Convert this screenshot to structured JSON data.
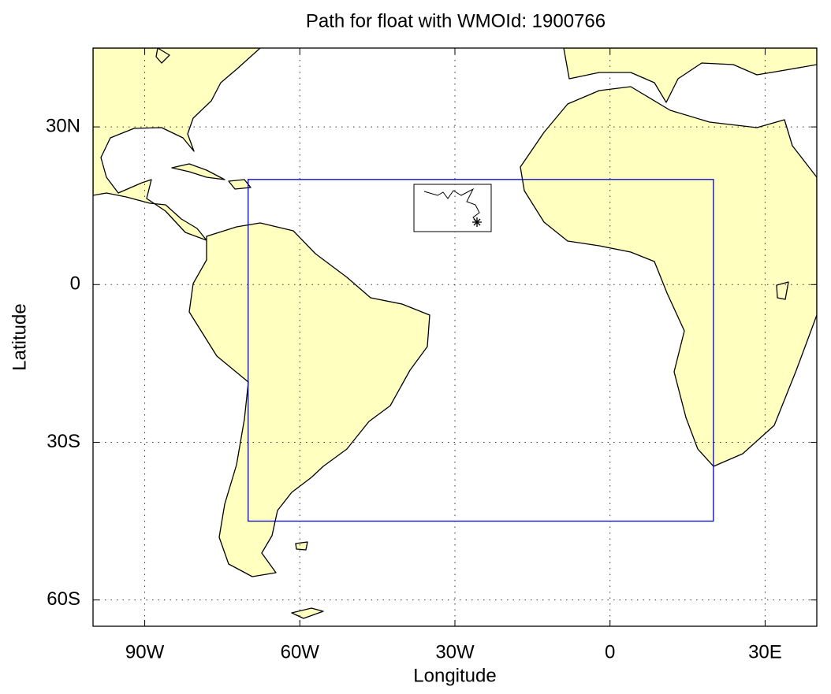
{
  "chart_data": {
    "type": "map",
    "title": "Path for float with WMOId: 1900766",
    "x_label": "Longitude",
    "y_label": "Latitude",
    "xlim": [
      -100,
      40
    ],
    "ylim": [
      -65,
      45
    ],
    "xticks": [
      {
        "value": -90,
        "label": "90W"
      },
      {
        "value": -60,
        "label": "60W"
      },
      {
        "value": -30,
        "label": "30W"
      },
      {
        "value": 0,
        "label": "0"
      },
      {
        "value": 30,
        "label": "30E"
      }
    ],
    "yticks": [
      {
        "value": 30,
        "label": "30N"
      },
      {
        "value": 0,
        "label": "0"
      },
      {
        "value": -30,
        "label": "30S"
      },
      {
        "value": -60,
        "label": "60S"
      }
    ],
    "grid": true,
    "region": {
      "lon": [
        -70,
        20
      ],
      "lat": [
        -45,
        20
      ],
      "color": "#0000cc"
    }
  }
}
